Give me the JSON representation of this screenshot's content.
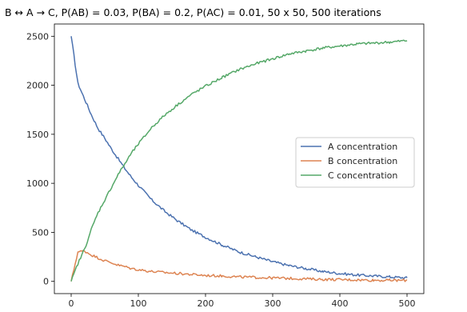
{
  "chart_data": {
    "type": "line",
    "title": "B ↔ A → C, P(AB) = 0.03, P(BA) = 0.2, P(AC) = 0.01, 50 x 50, 500 iterations",
    "xlabel": "",
    "ylabel": "",
    "xlim": [
      -25,
      525
    ],
    "ylim": [
      -125,
      2625
    ],
    "xticks": [
      0,
      100,
      200,
      300,
      400,
      500
    ],
    "yticks": [
      0,
      500,
      1000,
      1500,
      2000,
      2500
    ],
    "grid": false,
    "legend": {
      "placement": "center-right"
    },
    "x": [
      0,
      10,
      20,
      30,
      40,
      50,
      60,
      70,
      80,
      90,
      100,
      120,
      140,
      160,
      180,
      200,
      225,
      250,
      275,
      300,
      325,
      350,
      375,
      400,
      425,
      450,
      475,
      500
    ],
    "series": [
      {
        "name": "A concentration",
        "color": "#4c72b0",
        "values": [
          2500,
          2020,
          1860,
          1700,
          1560,
          1460,
          1350,
          1250,
          1150,
          1060,
          980,
          830,
          710,
          610,
          520,
          450,
          370,
          300,
          250,
          200,
          160,
          130,
          100,
          80,
          65,
          55,
          45,
          35
        ]
      },
      {
        "name": "B concentration",
        "color": "#dd8452",
        "values": [
          0,
          300,
          310,
          270,
          240,
          210,
          190,
          165,
          150,
          130,
          120,
          100,
          90,
          80,
          70,
          60,
          55,
          45,
          40,
          35,
          30,
          25,
          20,
          18,
          15,
          12,
          10,
          10
        ]
      },
      {
        "name": "C concentration",
        "color": "#55a868",
        "values": [
          0,
          180,
          330,
          530,
          700,
          830,
          960,
          1090,
          1200,
          1310,
          1400,
          1570,
          1700,
          1810,
          1910,
          1990,
          2080,
          2160,
          2220,
          2270,
          2320,
          2350,
          2380,
          2400,
          2420,
          2430,
          2440,
          2455
        ]
      }
    ]
  }
}
